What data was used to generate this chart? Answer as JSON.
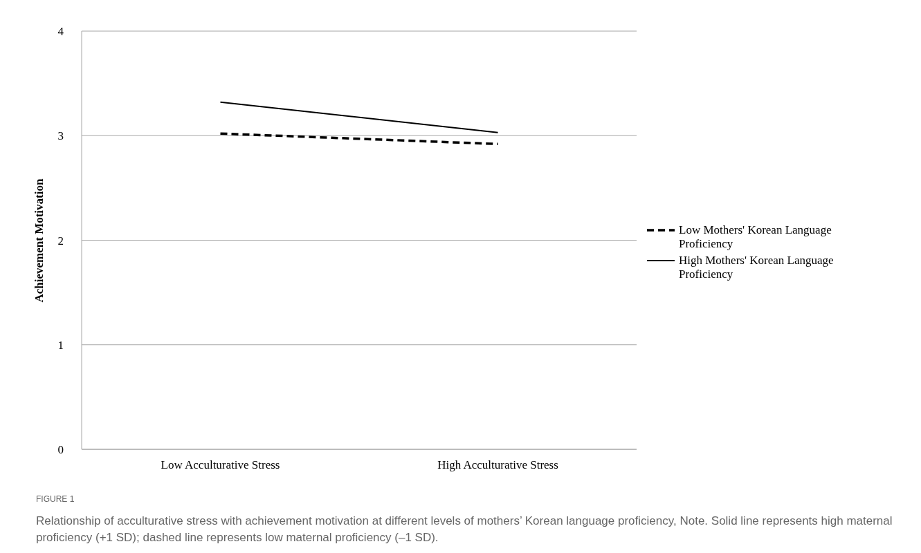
{
  "chart_data": {
    "type": "line",
    "ylabel": "Achievement Motivation",
    "categories": [
      "Low Acculturative Stress",
      "High Acculturative Stress"
    ],
    "series": [
      {
        "name": "Low Mothers' Korean Language Proficiency",
        "color": "#000000",
        "line_style": "dashed",
        "values": [
          3.02,
          2.92
        ]
      },
      {
        "name": "High Mothers' Korean Language Proficiency",
        "color": "#000000",
        "line_style": "solid",
        "values": [
          3.32,
          3.03
        ]
      }
    ],
    "ylim": [
      0,
      4
    ],
    "yticks": [
      0,
      1,
      2,
      3,
      4
    ],
    "grid": "y",
    "legend": "right",
    "marker": "none",
    "annotations": [
      "FIGURE 1",
      "Relationship of acculturative stress with achievement motivation at different levels of mothers’ Korean language proficiency, Note. Solid line represents high maternal proficiency (+1 SD); dashed line represents low maternal proficiency (–1 SD)."
    ]
  }
}
